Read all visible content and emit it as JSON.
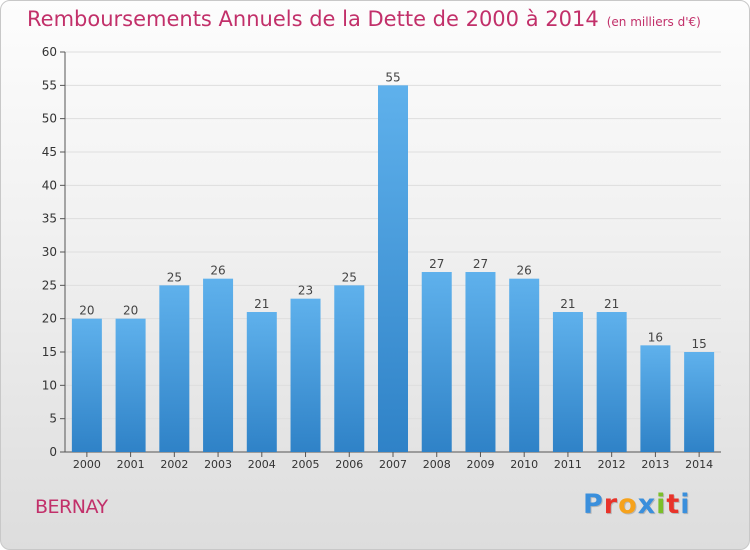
{
  "header": {
    "title": "Remboursements Annuels de la Dette de 2000 à 2014",
    "unit": "(en milliers d'€)"
  },
  "footer": {
    "place": "BERNAY",
    "logo_letters": [
      "P",
      "r",
      "o",
      "x",
      "i",
      "t",
      "i"
    ],
    "logo_colors": [
      "#3a8fdc",
      "#e8332a",
      "#f6a21b",
      "#3a8fdc",
      "#7bbf2a",
      "#e8332a",
      "#3a8fdc"
    ]
  },
  "colors": {
    "title": "#c2306a",
    "bar_top": "#5fb1ec",
    "bar_bottom": "#2f82c7",
    "grid": "#dedede"
  },
  "chart_data": {
    "type": "bar",
    "title": "Remboursements Annuels de la Dette de 2000 à 2014",
    "subtitle": "(en milliers d'€)",
    "categories": [
      "2000",
      "2001",
      "2002",
      "2003",
      "2004",
      "2005",
      "2006",
      "2007",
      "2008",
      "2009",
      "2010",
      "2011",
      "2012",
      "2013",
      "2014"
    ],
    "values": [
      20,
      20,
      25,
      26,
      21,
      23,
      25,
      55,
      27,
      27,
      26,
      21,
      21,
      16,
      15
    ],
    "ylim": [
      0,
      60
    ],
    "yticks": [
      0,
      5,
      10,
      15,
      20,
      25,
      30,
      35,
      40,
      45,
      50,
      55,
      60
    ],
    "grid": true,
    "xlabel": "",
    "ylabel": ""
  }
}
